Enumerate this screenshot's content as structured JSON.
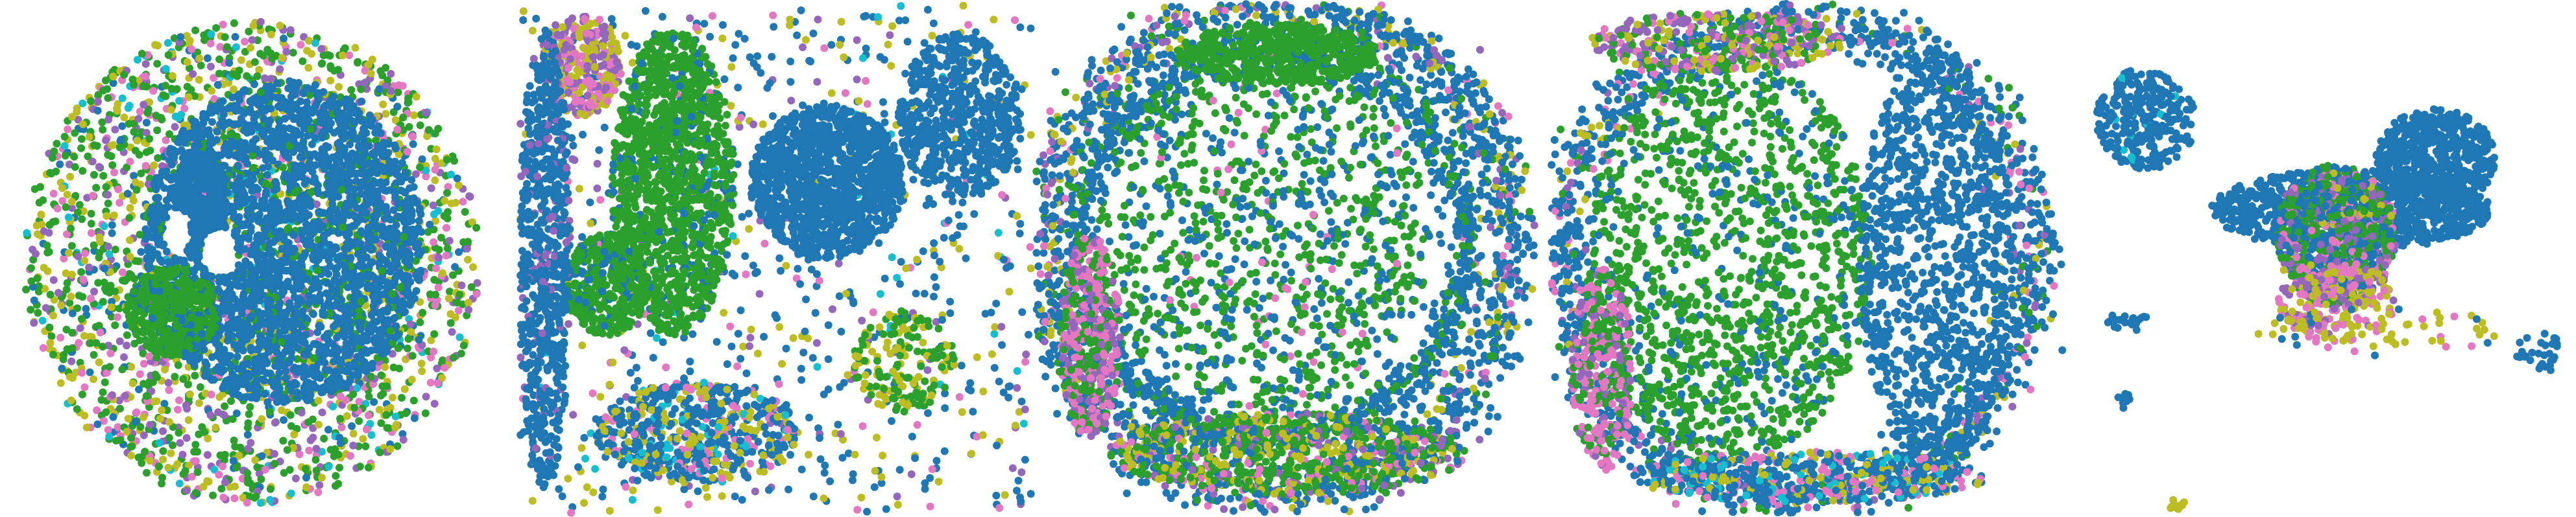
{
  "chart_data": [
    {
      "type": "scatter",
      "panel": "1",
      "axes_visible": false,
      "grid": false,
      "legend": "none",
      "xlim": [
        0,
        1
      ],
      "ylim": [
        0,
        1
      ],
      "point_radius": 6,
      "layers": [
        {
          "kind": "disc",
          "cx": 0.5,
          "cy": 0.5,
          "r": 0.49,
          "n": 2600,
          "mix": {
            "#2ca02c": 0.42,
            "#bcbd22": 0.2,
            "#e377c2": 0.12,
            "#9467bd": 0.14,
            "#17becf": 0.04,
            "#1f77b4": 0.08
          }
        },
        {
          "kind": "ellipse",
          "cx": 0.57,
          "cy": 0.46,
          "rx": 0.3,
          "ry": 0.33,
          "n": 2600,
          "mix": {
            "#1f77b4": 0.96,
            "#2ca02c": 0.04
          }
        },
        {
          "kind": "ellipse",
          "cx": 0.39,
          "cy": 0.38,
          "rx": 0.055,
          "ry": 0.12,
          "n": 420,
          "mix": {
            "#1f77b4": 1.0
          }
        },
        {
          "kind": "ellipse",
          "cx": 0.33,
          "cy": 0.6,
          "rx": 0.1,
          "ry": 0.09,
          "n": 380,
          "mix": {
            "#2ca02c": 0.85,
            "#1f77b4": 0.15
          }
        }
      ],
      "holes": [
        {
          "cx": 0.43,
          "cy": 0.48,
          "rx": 0.04,
          "ry": 0.05
        },
        {
          "cx": 0.34,
          "cy": 0.44,
          "rx": 0.03,
          "ry": 0.05
        }
      ]
    },
    {
      "type": "scatter",
      "panel": "2",
      "axes_visible": false,
      "grid": false,
      "legend": "none",
      "xlim": [
        0,
        1
      ],
      "ylim": [
        0,
        1
      ],
      "point_radius": 6,
      "layers": [
        {
          "kind": "rect",
          "x0": 0.0,
          "y0": 0.0,
          "x1": 1.0,
          "y1": 1.0,
          "n": 900,
          "mix": {
            "#1f77b4": 0.55,
            "#bcbd22": 0.2,
            "#9467bd": 0.1,
            "#e377c2": 0.08,
            "#17becf": 0.07
          }
        },
        {
          "kind": "ellipse",
          "cx": 0.3,
          "cy": 0.35,
          "rx": 0.12,
          "ry": 0.3,
          "n": 1300,
          "mix": {
            "#2ca02c": 0.9,
            "#1f77b4": 0.1
          }
        },
        {
          "kind": "ellipse",
          "cx": 0.17,
          "cy": 0.55,
          "rx": 0.08,
          "ry": 0.1,
          "n": 380,
          "mix": {
            "#2ca02c": 0.85,
            "#1f77b4": 0.15
          }
        },
        {
          "kind": "ellipse",
          "cx": 0.6,
          "cy": 0.35,
          "rx": 0.15,
          "ry": 0.15,
          "n": 1200,
          "mix": {
            "#1f77b4": 1.0
          }
        },
        {
          "kind": "ellipse",
          "cx": 0.86,
          "cy": 0.22,
          "rx": 0.12,
          "ry": 0.16,
          "n": 600,
          "mix": {
            "#1f77b4": 1.0
          }
        },
        {
          "kind": "ellipse",
          "cx": 0.12,
          "cy": 0.12,
          "rx": 0.08,
          "ry": 0.1,
          "n": 350,
          "mix": {
            "#e377c2": 0.35,
            "#9467bd": 0.35,
            "#bcbd22": 0.3
          }
        },
        {
          "kind": "ellipse",
          "cx": 0.05,
          "cy": 0.5,
          "rx": 0.05,
          "ry": 0.45,
          "n": 700,
          "mix": {
            "#1f77b4": 0.9,
            "#9467bd": 0.1
          }
        },
        {
          "kind": "ellipse",
          "cx": 0.35,
          "cy": 0.84,
          "rx": 0.2,
          "ry": 0.1,
          "n": 550,
          "mix": {
            "#1f77b4": 0.55,
            "#bcbd22": 0.25,
            "#e377c2": 0.1,
            "#17becf": 0.1
          }
        },
        {
          "kind": "ellipse",
          "cx": 0.75,
          "cy": 0.7,
          "rx": 0.1,
          "ry": 0.1,
          "n": 160,
          "mix": {
            "#2ca02c": 0.6,
            "#bcbd22": 0.4
          }
        }
      ],
      "holes": []
    },
    {
      "type": "scatter",
      "panel": "3",
      "axes_visible": false,
      "grid": false,
      "legend": "none",
      "xlim": [
        0,
        1
      ],
      "ylim": [
        0,
        1
      ],
      "point_radius": 6,
      "layers": [
        {
          "kind": "ring",
          "cx": 0.48,
          "cy": 0.48,
          "rx": 0.46,
          "ry": 0.48,
          "w": 0.06,
          "n": 1700,
          "mix": {
            "#1f77b4": 0.65,
            "#bcbd22": 0.12,
            "#e377c2": 0.08,
            "#9467bd": 0.08,
            "#2ca02c": 0.07
          }
        },
        {
          "kind": "ring",
          "cx": 0.47,
          "cy": 0.47,
          "rx": 0.38,
          "ry": 0.38,
          "w": 0.04,
          "n": 1200,
          "mix": {
            "#1f77b4": 0.8,
            "#2ca02c": 0.2
          }
        },
        {
          "kind": "ellipse",
          "cx": 0.45,
          "cy": 0.45,
          "rx": 0.33,
          "ry": 0.35,
          "n": 1100,
          "mix": {
            "#2ca02c": 0.6,
            "#1f77b4": 0.35,
            "#e377c2": 0.05
          }
        },
        {
          "kind": "ellipse",
          "cx": 0.48,
          "cy": 0.1,
          "rx": 0.2,
          "ry": 0.06,
          "n": 450,
          "mix": {
            "#2ca02c": 1.0
          }
        },
        {
          "kind": "ellipse",
          "cx": 0.5,
          "cy": 0.88,
          "rx": 0.35,
          "ry": 0.08,
          "n": 800,
          "mix": {
            "#2ca02c": 0.45,
            "#bcbd22": 0.2,
            "#1f77b4": 0.15,
            "#9467bd": 0.1,
            "#e377c2": 0.1
          }
        },
        {
          "kind": "ellipse",
          "cx": 0.11,
          "cy": 0.65,
          "rx": 0.06,
          "ry": 0.2,
          "n": 400,
          "mix": {
            "#e377c2": 0.45,
            "#9467bd": 0.25,
            "#2ca02c": 0.3
          }
        }
      ],
      "holes": []
    },
    {
      "type": "scatter",
      "panel": "4",
      "axes_visible": false,
      "grid": false,
      "legend": "none",
      "xlim": [
        0,
        1
      ],
      "ylim": [
        0,
        1
      ],
      "point_radius": 6,
      "layers": [
        {
          "kind": "ring",
          "cx": 0.48,
          "cy": 0.5,
          "rx": 0.46,
          "ry": 0.47,
          "w": 0.06,
          "n": 1500,
          "mix": {
            "#1f77b4": 0.7,
            "#2ca02c": 0.1,
            "#e377c2": 0.08,
            "#9467bd": 0.07,
            "#bcbd22": 0.05
          }
        },
        {
          "kind": "ellipse",
          "cx": 0.35,
          "cy": 0.5,
          "rx": 0.28,
          "ry": 0.4,
          "n": 1400,
          "mix": {
            "#2ca02c": 0.78,
            "#1f77b4": 0.22
          }
        },
        {
          "kind": "ellipse",
          "cx": 0.75,
          "cy": 0.5,
          "rx": 0.15,
          "ry": 0.42,
          "n": 1100,
          "mix": {
            "#1f77b4": 1.0
          }
        },
        {
          "kind": "ellipse",
          "cx": 0.5,
          "cy": 0.93,
          "rx": 0.35,
          "ry": 0.05,
          "n": 500,
          "mix": {
            "#1f77b4": 0.6,
            "#e377c2": 0.15,
            "#bcbd22": 0.15,
            "#17becf": 0.1
          }
        },
        {
          "kind": "ellipse",
          "cx": 0.32,
          "cy": 0.07,
          "rx": 0.25,
          "ry": 0.06,
          "n": 350,
          "mix": {
            "#9467bd": 0.3,
            "#e377c2": 0.2,
            "#bcbd22": 0.2,
            "#2ca02c": 0.3
          }
        },
        {
          "kind": "ellipse",
          "cx": 0.1,
          "cy": 0.72,
          "rx": 0.06,
          "ry": 0.2,
          "n": 300,
          "mix": {
            "#e377c2": 0.5,
            "#9467bd": 0.2,
            "#2ca02c": 0.3
          }
        }
      ],
      "holes": []
    },
    {
      "type": "scatter",
      "panel": "5",
      "axes_visible": false,
      "grid": false,
      "legend": "none",
      "xlim": [
        0,
        1
      ],
      "ylim": [
        0,
        1
      ],
      "point_radius": 6,
      "layers": [
        {
          "kind": "ellipse",
          "cx": 0.14,
          "cy": 0.22,
          "rx": 0.1,
          "ry": 0.1,
          "n": 280,
          "mix": {
            "#1f77b4": 0.97,
            "#17becf": 0.03
          }
        },
        {
          "kind": "ellipse",
          "cx": 0.55,
          "cy": 0.4,
          "rx": 0.28,
          "ry": 0.08,
          "n": 900,
          "mix": {
            "#1f77b4": 1.0
          }
        },
        {
          "kind": "ellipse",
          "cx": 0.72,
          "cy": 0.3,
          "rx": 0.12,
          "ry": 0.1,
          "n": 600,
          "mix": {
            "#1f77b4": 1.0
          }
        },
        {
          "kind": "ellipse",
          "cx": 0.52,
          "cy": 0.45,
          "rx": 0.12,
          "ry": 0.14,
          "n": 900,
          "mix": {
            "#2ca02c": 0.4,
            "#1f77b4": 0.3,
            "#9467bd": 0.15,
            "#e377c2": 0.1,
            "#bcbd22": 0.05
          }
        },
        {
          "kind": "ellipse",
          "cx": 0.52,
          "cy": 0.58,
          "rx": 0.12,
          "ry": 0.08,
          "n": 220,
          "mix": {
            "#bcbd22": 0.5,
            "#e377c2": 0.3,
            "#9467bd": 0.2
          }
        },
        {
          "kind": "ellipse",
          "cx": 0.1,
          "cy": 0.62,
          "rx": 0.05,
          "ry": 0.02,
          "n": 25,
          "mix": {
            "#1f77b4": 1.0
          }
        },
        {
          "kind": "ellipse",
          "cx": 0.6,
          "cy": 0.64,
          "rx": 0.25,
          "ry": 0.05,
          "n": 60,
          "mix": {
            "#bcbd22": 0.45,
            "#e377c2": 0.3,
            "#1f77b4": 0.25
          }
        },
        {
          "kind": "ellipse",
          "cx": 0.93,
          "cy": 0.68,
          "rx": 0.05,
          "ry": 0.04,
          "n": 30,
          "mix": {
            "#1f77b4": 1.0
          }
        },
        {
          "kind": "ellipse",
          "cx": 0.2,
          "cy": 0.98,
          "rx": 0.02,
          "ry": 0.015,
          "n": 10,
          "mix": {
            "#bcbd22": 1.0
          }
        },
        {
          "kind": "ellipse",
          "cx": 0.09,
          "cy": 0.77,
          "rx": 0.02,
          "ry": 0.02,
          "n": 8,
          "mix": {
            "#1f77b4": 1.0
          }
        }
      ],
      "holes": []
    }
  ]
}
